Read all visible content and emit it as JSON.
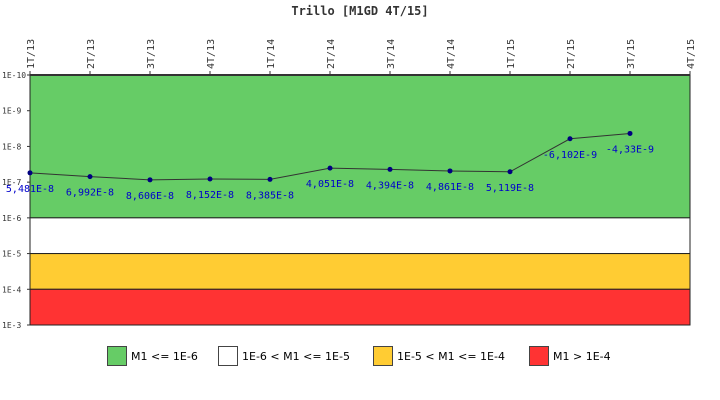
{
  "chart_data": {
    "type": "line",
    "title": "Trillo [M1GD 4T/15]",
    "categories": [
      "1T/13",
      "2T/13",
      "3T/13",
      "4T/13",
      "1T/14",
      "2T/14",
      "3T/14",
      "4T/14",
      "1T/15",
      "2T/15",
      "3T/15",
      "4T/15"
    ],
    "y_scale": "log-inverted",
    "y_ticks": [
      "1E-10",
      "1E-9",
      "1E-8",
      "1E-7",
      "1E-6",
      "1E-5",
      "1E-4",
      "1E-3"
    ],
    "series": [
      {
        "color": "#000080",
        "values": [
          5.481e-08,
          6.992e-08,
          8.606e-08,
          8.152e-08,
          8.385e-08,
          4.051e-08,
          4.394e-08,
          4.861e-08,
          5.119e-08,
          -6.102e-09,
          -4.33e-09,
          null
        ],
        "point_labels": [
          "5,481E-8",
          "6,992E-8",
          "8,606E-8",
          "8,152E-8",
          "8,385E-8",
          "4,051E-8",
          "4,394E-8",
          "4,861E-8",
          "5,119E-8",
          "-6,102E-9",
          "-4,33E-9",
          ""
        ]
      }
    ],
    "bands": [
      {
        "from_exp": -10,
        "to_exp": -6,
        "color": "#66cc66",
        "label": "M1 <= 1E-6"
      },
      {
        "from_exp": -6,
        "to_exp": -5,
        "color": "#ffffff",
        "label": "1E-6 < M1 <= 1E-5"
      },
      {
        "from_exp": -5,
        "to_exp": -4,
        "color": "#ffcc33",
        "label": "1E-5 < M1 <= 1E-4"
      },
      {
        "from_exp": -4,
        "to_exp": -3,
        "color": "#ff3333",
        "label": "M1 > 1E-4"
      }
    ]
  }
}
